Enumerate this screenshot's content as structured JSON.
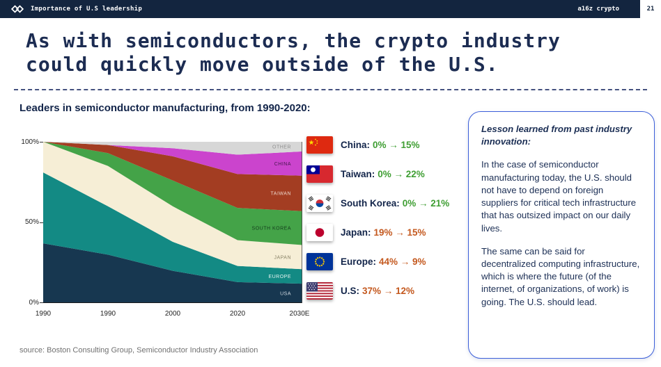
{
  "top_bar": {
    "title": "Importance of U.S leadership",
    "brand": "a16z crypto",
    "page_number": "21"
  },
  "headline": {
    "line1": "As with semiconductors, the crypto industry",
    "line2": "could quickly move outside of the U.S."
  },
  "section_label": "Leaders in semiconductor manufacturing, from 1990-2020:",
  "chart_data": {
    "type": "area",
    "stacked": true,
    "title": "Leaders in semiconductor manufacturing, from 1990-2020",
    "x_ticks": [
      "1990",
      "1990",
      "2000",
      "2020",
      "2030E"
    ],
    "y_ticks": [
      "0%",
      "50%",
      "100%"
    ],
    "ylim": [
      0,
      100
    ],
    "unit": "%",
    "series": [
      {
        "name": "USA",
        "values": [
          37,
          30,
          20,
          13,
          12
        ],
        "color": "#173750",
        "label_color": "#d4dde4"
      },
      {
        "name": "EUROPE",
        "values": [
          44,
          30,
          18,
          10,
          9
        ],
        "color": "#138a84",
        "label_color": "#e6f3f1"
      },
      {
        "name": "JAPAN",
        "values": [
          19,
          25,
          22,
          16,
          15
        ],
        "color": "#f6eed6",
        "label_color": "#8a8468"
      },
      {
        "name": "SOUTH KOREA",
        "values": [
          0,
          8,
          16,
          20,
          21
        ],
        "color": "#44a348",
        "label_color": "#143c1d"
      },
      {
        "name": "TAIWAN",
        "values": [
          0,
          5,
          15,
          21,
          22
        ],
        "color": "#a33d22",
        "label_color": "#ecd6cb"
      },
      {
        "name": "CHINA",
        "values": [
          0,
          0,
          5,
          12,
          15
        ],
        "color": "#cb44cd",
        "label_color": "#47184f"
      },
      {
        "name": "OTHER",
        "values": [
          0,
          2,
          4,
          8,
          6
        ],
        "color": "#d7d7d7",
        "label_color": "#8f8f8f"
      }
    ]
  },
  "legend": [
    {
      "flag": "china-flag",
      "name": "China:",
      "values": "0% → 15%",
      "trend": "up"
    },
    {
      "flag": "taiwan-flag",
      "name": "Taiwan:",
      "values": "0% → 22%",
      "trend": "up"
    },
    {
      "flag": "south-korea-flag",
      "name": "South Korea:",
      "values": "0% → 21%",
      "trend": "up"
    },
    {
      "flag": "japan-flag",
      "name": "Japan:",
      "values": "19% → 15%",
      "trend": "down"
    },
    {
      "flag": "europe-flag",
      "name": "Europe:",
      "values": "44% → 9%",
      "trend": "down"
    },
    {
      "flag": "us-flag",
      "name": "U.S:",
      "values": "37% → 12%",
      "trend": "down"
    }
  ],
  "card": {
    "heading": "Lesson learned from past industry innovation:",
    "paragraph1": "In the case of semiconductor manufacturing today, the U.S. should not have to depend on foreign suppliers for critical tech infrastructure that has outsized impact on our daily lives.",
    "paragraph2": "The same can be said for decentralized computing infrastructure, which is where the future (of the internet, of organizations, of work) is going. The U.S. should lead."
  },
  "source": "source: Boston Consulting Group, Semiconductor Industry Association",
  "colors": {
    "navy": "#13253f",
    "increase_green": "#3f9e33",
    "decrease_orange": "#c4591f",
    "card_border_blue": "#3b5ed8"
  }
}
